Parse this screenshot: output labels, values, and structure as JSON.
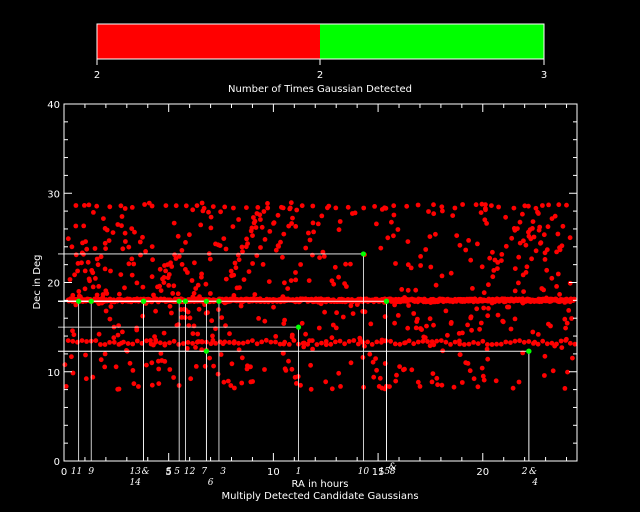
{
  "colorbar": {
    "segments": [
      {
        "label_from": "2",
        "label_to": "2",
        "color": "#ff0000"
      },
      {
        "label_from": "2",
        "label_to": "3",
        "color": "#00ff00"
      }
    ],
    "tick_labels": [
      "2",
      "2",
      "3"
    ],
    "title": "Number of Times Gaussian Detected"
  },
  "chart_data": {
    "type": "scatter",
    "title": "Multiply Detected Candidate Gaussians",
    "xlabel": "RA in hours",
    "ylabel": "Dec in Deg",
    "xlim": [
      0,
      24.5
    ],
    "ylim": [
      0,
      40
    ],
    "xticks": [
      0,
      5,
      10,
      15,
      20
    ],
    "yticks": [
      0,
      10,
      20,
      30,
      40
    ],
    "grid": false,
    "colors": {
      "all_detections": "#ff0000",
      "candidates": "#00ff00",
      "guides": "#ffffff"
    },
    "candidates": [
      {
        "id": "11",
        "ra": 0.7,
        "dec": 17.9,
        "color": "#00ff00"
      },
      {
        "id": "9",
        "ra": 1.3,
        "dec": 17.9,
        "color": "#00ff00"
      },
      {
        "id": "13",
        "ra": 3.8,
        "dec": 17.9,
        "color": "#00ff00"
      },
      {
        "id": "14",
        "ra": 3.8,
        "dec": 17.9,
        "color": "#00ff00"
      },
      {
        "id": "5",
        "ra": 5.5,
        "dec": 17.9,
        "color": "#00ff00"
      },
      {
        "id": "12",
        "ra": 5.8,
        "dec": 17.9,
        "color": "#00ff00"
      },
      {
        "id": "7",
        "ra": 6.8,
        "dec": 17.9,
        "color": "#00ff00"
      },
      {
        "id": "6",
        "ra": 6.8,
        "dec": 12.3,
        "color": "#00ff00"
      },
      {
        "id": "3",
        "ra": 7.4,
        "dec": 17.9,
        "color": "#00ff00"
      },
      {
        "id": "1",
        "ra": 11.2,
        "dec": 15.0,
        "color": "#00ff00"
      },
      {
        "id": "10",
        "ra": 14.3,
        "dec": 23.2,
        "color": "#00ff00"
      },
      {
        "id": "15",
        "ra": 15.4,
        "dec": 17.9,
        "color": "#00ff00"
      },
      {
        "id": "8",
        "ra": 15.4,
        "dec": 17.9,
        "color": "#00ff00"
      },
      {
        "id": "2",
        "ra": 22.2,
        "dec": 12.3,
        "color": "#00ff00"
      },
      {
        "id": "4",
        "ra": 22.2,
        "dec": 12.3,
        "color": "#00ff00"
      }
    ],
    "candidate_labels": [
      {
        "text": "11",
        "ra": 0.6,
        "row": 1
      },
      {
        "text": "9",
        "ra": 1.3,
        "row": 1
      },
      {
        "text": "13",
        "ra": 3.4,
        "row": 1
      },
      {
        "text": "&",
        "ra": 3.9,
        "row": 1
      },
      {
        "text": "14",
        "ra": 3.4,
        "row": 2
      },
      {
        "text": "5",
        "ra": 5.0,
        "row": 1
      },
      {
        "text": "5",
        "ra": 5.4,
        "row": 1
      },
      {
        "text": "12",
        "ra": 6.0,
        "row": 1
      },
      {
        "text": "7",
        "ra": 6.7,
        "row": 1
      },
      {
        "text": "6",
        "ra": 7.0,
        "row": 2
      },
      {
        "text": "3",
        "ra": 7.6,
        "row": 1
      },
      {
        "text": "1",
        "ra": 11.2,
        "row": 1
      },
      {
        "text": "10",
        "ra": 14.3,
        "row": 1
      },
      {
        "text": "15",
        "ra": 15.3,
        "row": 1
      },
      {
        "text": "&",
        "ra": 15.7,
        "row": 0.6
      },
      {
        "text": "8",
        "ra": 15.7,
        "row": 1
      },
      {
        "text": "2",
        "ra": 22.0,
        "row": 1
      },
      {
        "text": "&",
        "ra": 22.4,
        "row": 1
      },
      {
        "text": "4",
        "ra": 22.5,
        "row": 2
      }
    ],
    "detections_description": "Red scatter of all Gaussian detections, RA 0-24 h, Dec 8-29 deg; dense band at Dec 18, secondary band at Dec 13.3",
    "dense_band_dec": 18.0,
    "secondary_band_dec": 13.3
  }
}
